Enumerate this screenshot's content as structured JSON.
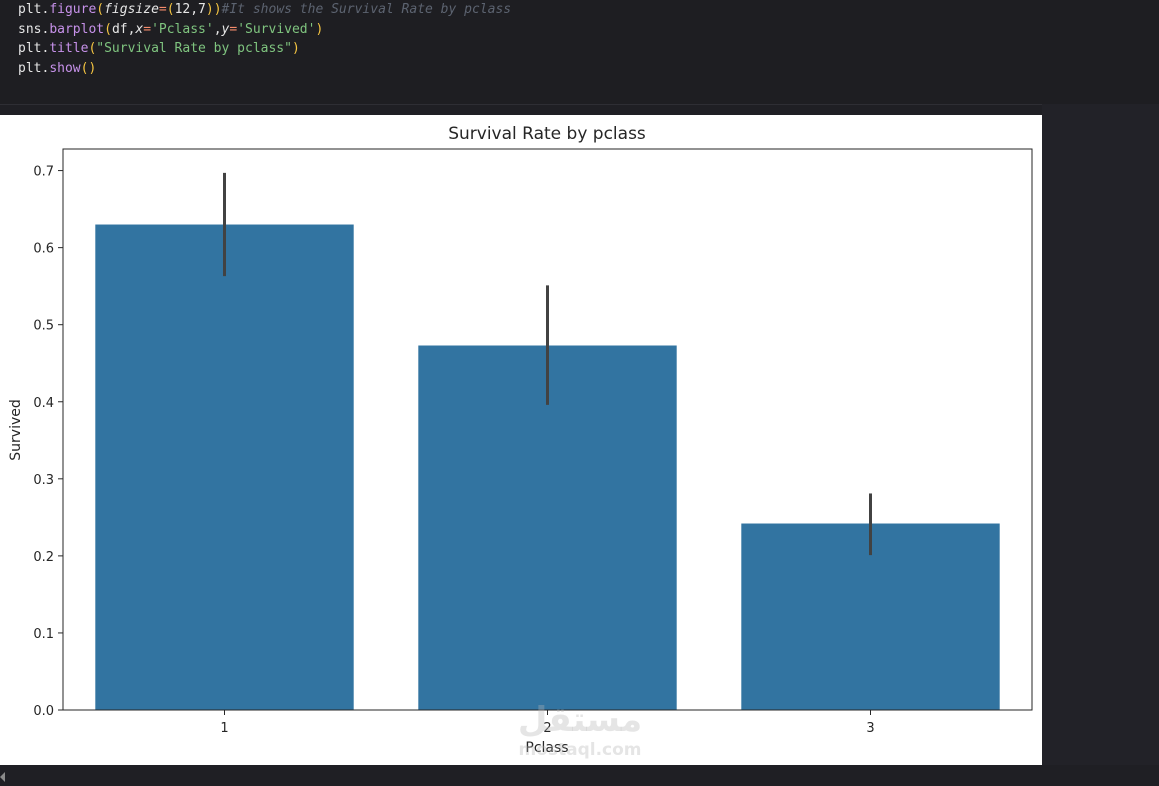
{
  "code": {
    "lines": [
      [
        {
          "t": "plt",
          "c": "var"
        },
        {
          "t": ".",
          "c": "var"
        },
        {
          "t": "figure",
          "c": "fn"
        },
        {
          "t": "(",
          "c": "par"
        },
        {
          "t": "figsize",
          "c": "kw"
        },
        {
          "t": "=",
          "c": "op"
        },
        {
          "t": "(",
          "c": "par"
        },
        {
          "t": "12,7",
          "c": "num"
        },
        {
          "t": ")",
          "c": "par"
        },
        {
          "t": ")",
          "c": "par"
        },
        {
          "t": "#It shows the Survival Rate by pclass",
          "c": "com"
        }
      ],
      [
        {
          "t": "sns",
          "c": "var"
        },
        {
          "t": ".",
          "c": "var"
        },
        {
          "t": "barplot",
          "c": "fn"
        },
        {
          "t": "(",
          "c": "par"
        },
        {
          "t": "df,",
          "c": "var"
        },
        {
          "t": "x",
          "c": "kw"
        },
        {
          "t": "=",
          "c": "op"
        },
        {
          "t": "'Pclass'",
          "c": "str"
        },
        {
          "t": ",",
          "c": "var"
        },
        {
          "t": "y",
          "c": "kw"
        },
        {
          "t": "=",
          "c": "op"
        },
        {
          "t": "'Survived'",
          "c": "str"
        },
        {
          "t": ")",
          "c": "par"
        }
      ],
      [
        {
          "t": "plt",
          "c": "var"
        },
        {
          "t": ".",
          "c": "var"
        },
        {
          "t": "title",
          "c": "fn"
        },
        {
          "t": "(",
          "c": "par"
        },
        {
          "t": "\"Survival Rate by pclass\"",
          "c": "str"
        },
        {
          "t": ")",
          "c": "par"
        }
      ],
      [
        {
          "t": "plt",
          "c": "var"
        },
        {
          "t": ".",
          "c": "var"
        },
        {
          "t": "show",
          "c": "fn"
        },
        {
          "t": "()",
          "c": "par"
        }
      ]
    ]
  },
  "chart_data": {
    "type": "bar",
    "title": "Survival Rate by pclass",
    "xlabel": "Pclass",
    "ylabel": "Survived",
    "categories": [
      "1",
      "2",
      "3"
    ],
    "values": [
      0.63,
      0.473,
      0.242
    ],
    "error_low": [
      0.563,
      0.396,
      0.201
    ],
    "error_high": [
      0.697,
      0.551,
      0.281
    ],
    "ylim": [
      0,
      0.728
    ],
    "yticks": [
      0.0,
      0.1,
      0.2,
      0.3,
      0.4,
      0.5,
      0.6,
      0.7
    ],
    "ytick_labels": [
      "0.0",
      "0.1",
      "0.2",
      "0.3",
      "0.4",
      "0.5",
      "0.6",
      "0.7"
    ],
    "bar_color": "#3274a1",
    "errorbar_color": "#424242",
    "grid": false
  },
  "watermark": {
    "logo": "مستقل",
    "url": "mostaql.com"
  }
}
